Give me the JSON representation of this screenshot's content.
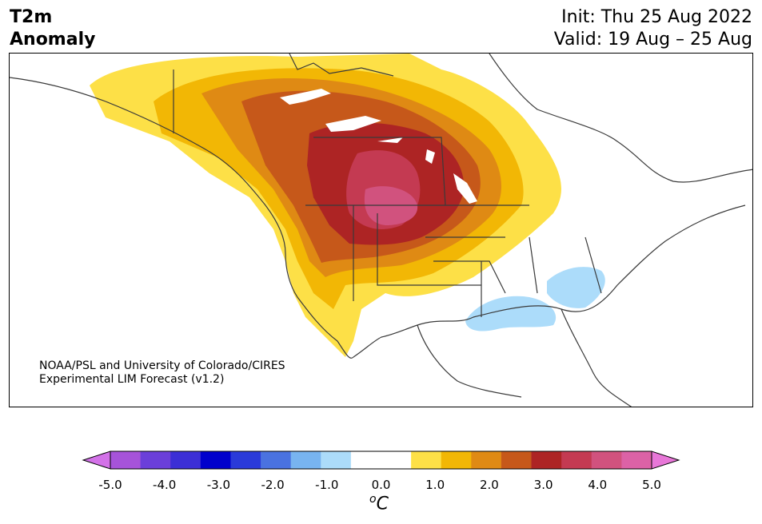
{
  "title": {
    "variable": "T2m",
    "subtitle": "Anomaly",
    "init": "Init: Thu 25 Aug 2022",
    "valid": "Valid: 19 Aug – 25 Aug"
  },
  "credit": {
    "line1": "NOAA/PSL and University of Colorado/CIRES",
    "line2": "Experimental LIM Forecast (v1.2)"
  },
  "colorbar": {
    "unit_base": "C",
    "unit_sup": "o",
    "ticks": [
      "-5.0",
      "-4.0",
      "-3.0",
      "-2.0",
      "-1.0",
      "0.0",
      "1.0",
      "2.0",
      "3.0",
      "4.0",
      "5.0"
    ],
    "colors": [
      "#a653d9",
      "#6b3fd9",
      "#3c2fd6",
      "#0000cc",
      "#2a3ad9",
      "#4a72e0",
      "#78b4f0",
      "#acdcfa",
      "#ffffff",
      "#ffffff",
      "#fde047",
      "#f2b705",
      "#df8a14",
      "#c6581a",
      "#ad2424",
      "#c43a52",
      "#d1527e",
      "#dc62a6"
    ],
    "under_color": "#d372e8",
    "over_color": "#e877d8"
  },
  "map": {
    "region": "North America",
    "land_color": "#ffffff",
    "coast_color": "#3a3a3a"
  }
}
